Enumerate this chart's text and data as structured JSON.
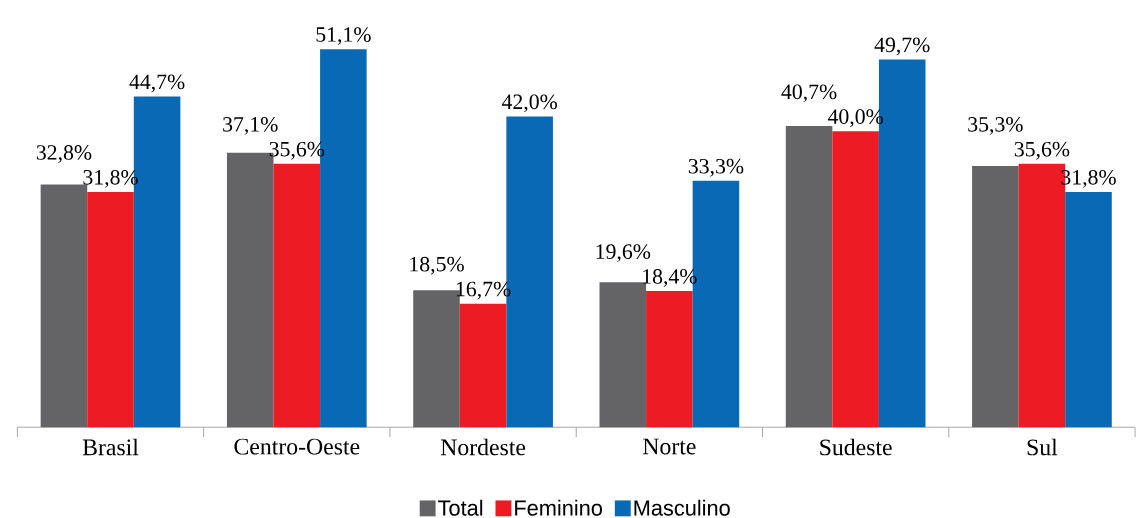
{
  "chart_data": {
    "type": "bar",
    "categories": [
      "Brasil",
      "Centro-Oeste",
      "Nordeste",
      "Norte",
      "Sudeste",
      "Sul"
    ],
    "series": [
      {
        "name": "Total",
        "color": "#646466",
        "values": [
          32.8,
          37.1,
          18.5,
          19.6,
          40.7,
          35.3
        ],
        "value_labels": [
          "32,8%",
          "37,1%",
          "18,5%",
          "19,6%",
          "40,7%",
          "35,3%"
        ]
      },
      {
        "name": "Feminino",
        "color": "#ed1c24",
        "values": [
          31.8,
          35.6,
          16.7,
          18.4,
          40.0,
          35.6
        ],
        "value_labels": [
          "31,8%",
          "35,6%",
          "16,7%",
          "18,4%",
          "40,0%",
          "35,6%"
        ]
      },
      {
        "name": "Masculino",
        "color": "#0a69b4",
        "values": [
          44.7,
          51.1,
          42.0,
          33.3,
          49.7,
          31.8
        ],
        "value_labels": [
          "44,7%",
          "51,1%",
          "42,0%",
          "33,3%",
          "49,7%",
          "31,8%"
        ]
      }
    ],
    "legend": "bottom"
  }
}
